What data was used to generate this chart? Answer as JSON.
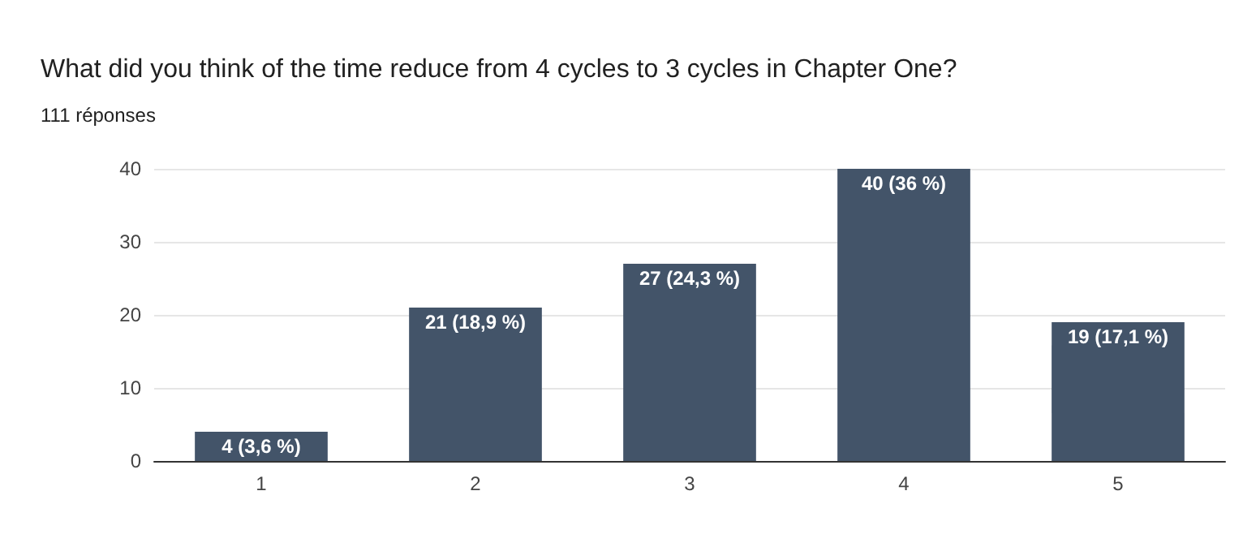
{
  "chart_data": {
    "type": "bar",
    "title": "What did you think of the time reduce from 4 cycles to 3 cycles in Chapter One?",
    "subtitle": "111 réponses",
    "categories": [
      "1",
      "2",
      "3",
      "4",
      "5"
    ],
    "values": [
      4,
      21,
      27,
      40,
      19
    ],
    "value_labels": [
      "4 (3,6 %)",
      "21 (18,9 %)",
      "27 (24,3 %)",
      "40 (36 %)",
      "19 (17,1 %)"
    ],
    "color": "#435469",
    "ylim": [
      0,
      40
    ],
    "yticks": [
      0,
      10,
      20,
      30,
      40
    ],
    "grid": "y"
  }
}
